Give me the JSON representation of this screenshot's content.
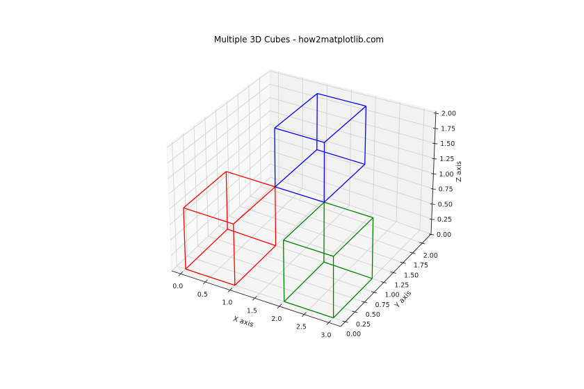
{
  "chart_data": {
    "type": "3d-wireframe",
    "title": "Multiple 3D Cubes - how2matplotlib.com",
    "xlabel": "X axis",
    "ylabel": "Y axis",
    "zlabel": "Z axis",
    "xlim": [
      -0.18,
      3.24
    ],
    "ylim": [
      -0.12,
      2.23
    ],
    "zlim": [
      0,
      2.03
    ],
    "grid": true,
    "xticks": [
      "0.0",
      "0.5",
      "1.0",
      "1.5",
      "2.0",
      "2.5",
      "3.0"
    ],
    "yticks": [
      "0.00",
      "0.25",
      "0.50",
      "0.75",
      "1.00",
      "1.25",
      "1.50",
      "1.75",
      "2.00"
    ],
    "zticks": [
      "0.00",
      "0.25",
      "0.50",
      "0.75",
      "1.00",
      "1.25",
      "1.50",
      "1.75",
      "2.00"
    ],
    "cubes": [
      {
        "origin": [
          0,
          0,
          0
        ],
        "size": 1,
        "color": "#ff0000"
      },
      {
        "origin": [
          2,
          0,
          0
        ],
        "size": 1,
        "color": "#008000"
      },
      {
        "origin": [
          1,
          1,
          1
        ],
        "size": 1,
        "color": "#0000ff"
      }
    ],
    "pane_colors": {
      "x": "#f9f9f9",
      "y": "#f2f2f2",
      "z": "#f5f5f5"
    },
    "grid_color": "#d0d0d0"
  }
}
